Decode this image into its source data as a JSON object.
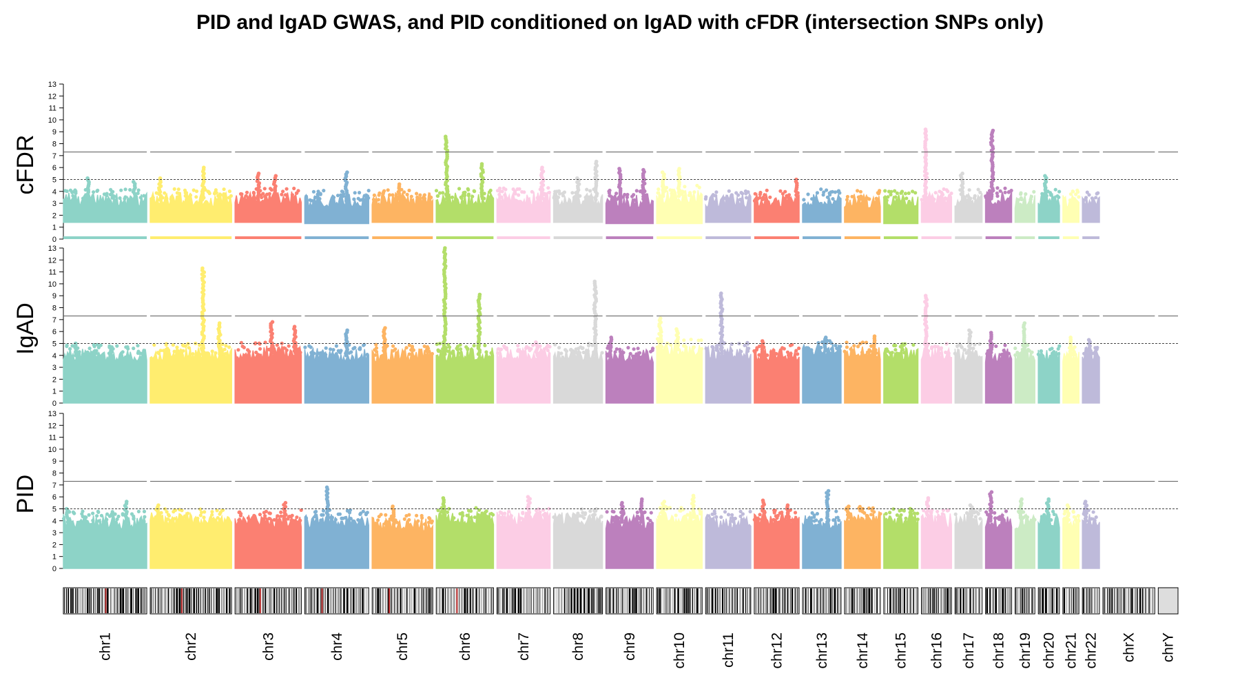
{
  "chart_data": {
    "type": "scatter",
    "subtype": "stacked manhattan plot",
    "title": "PID and IgAD GWAS, and PID conditioned on IgAD with cFDR (intersection SNPs only)",
    "ylim": [
      0,
      13
    ],
    "y_ticks": [
      0,
      1,
      2,
      3,
      4,
      5,
      6,
      7,
      8,
      9,
      10,
      11,
      12,
      13
    ],
    "genome_wide_threshold": 7.3,
    "suggestive_threshold": 5,
    "palette": [
      "#8dd3c7",
      "#ffed6f",
      "#fb8072",
      "#80b1d3",
      "#fdb462",
      "#b3de69",
      "#fccde5",
      "#d9d9d9",
      "#bc80bd",
      "#ffffb3",
      "#bebada",
      "#fb8072",
      "#80b1d3",
      "#fdb462",
      "#b3de69",
      "#fccde5",
      "#d9d9d9",
      "#bc80bd",
      "#ccebc5",
      "#8dd3c7",
      "#ffffb3",
      "#bebada"
    ],
    "chromosomes": [
      {
        "name": "chr1",
        "length": 249
      },
      {
        "name": "chr2",
        "length": 243
      },
      {
        "name": "chr3",
        "length": 198
      },
      {
        "name": "chr4",
        "length": 191
      },
      {
        "name": "chr5",
        "length": 181
      },
      {
        "name": "chr6",
        "length": 171
      },
      {
        "name": "chr7",
        "length": 159
      },
      {
        "name": "chr8",
        "length": 146
      },
      {
        "name": "chr9",
        "length": 141
      },
      {
        "name": "chr10",
        "length": 136
      },
      {
        "name": "chr11",
        "length": 135
      },
      {
        "name": "chr12",
        "length": 134
      },
      {
        "name": "chr13",
        "length": 115
      },
      {
        "name": "chr14",
        "length": 107
      },
      {
        "name": "chr15",
        "length": 102
      },
      {
        "name": "chr16",
        "length": 90
      },
      {
        "name": "chr17",
        "length": 81
      },
      {
        "name": "chr18",
        "length": 78
      },
      {
        "name": "chr19",
        "length": 59
      },
      {
        "name": "chr20",
        "length": 63
      },
      {
        "name": "chr21",
        "length": 48
      },
      {
        "name": "chr22",
        "length": 51
      },
      {
        "name": "chrX",
        "length": 155
      },
      {
        "name": "chrY",
        "length": 59
      }
    ],
    "panels": [
      {
        "label": "cFDR",
        "baseline": [
          1.4,
          1.4,
          1.4,
          1.3,
          1.4,
          1.4,
          1.4,
          1.4,
          1.3,
          1.3,
          1.4,
          1.4,
          1.4,
          1.4,
          1.3,
          1.4,
          1.4,
          1.4,
          1.4,
          1.4,
          1.4,
          1.4
        ],
        "typical": [
          3.3,
          3.3,
          3.4,
          3.2,
          3.3,
          3.4,
          3.4,
          3.3,
          3.2,
          3.6,
          3.2,
          3.2,
          3.3,
          3.2,
          3.2,
          3.3,
          3.3,
          3.4,
          3.2,
          3.3,
          3.2,
          3.2
        ],
        "peaks": [
          {
            "chr": 1,
            "pos": 0.3,
            "value": 5.1
          },
          {
            "chr": 1,
            "pos": 0.85,
            "value": 4.8
          },
          {
            "chr": 2,
            "pos": 0.12,
            "value": 5.1
          },
          {
            "chr": 2,
            "pos": 0.65,
            "value": 6.0
          },
          {
            "chr": 3,
            "pos": 0.35,
            "value": 5.5
          },
          {
            "chr": 3,
            "pos": 0.6,
            "value": 5.3
          },
          {
            "chr": 4,
            "pos": 0.65,
            "value": 5.6
          },
          {
            "chr": 5,
            "pos": 0.45,
            "value": 4.6
          },
          {
            "chr": 6,
            "pos": 0.18,
            "value": 8.6
          },
          {
            "chr": 6,
            "pos": 0.8,
            "value": 6.3
          },
          {
            "chr": 7,
            "pos": 0.85,
            "value": 6.0
          },
          {
            "chr": 8,
            "pos": 0.87,
            "value": 6.5
          },
          {
            "chr": 8,
            "pos": 0.5,
            "value": 5.1
          },
          {
            "chr": 9,
            "pos": 0.8,
            "value": 5.8
          },
          {
            "chr": 9,
            "pos": 0.3,
            "value": 5.9
          },
          {
            "chr": 10,
            "pos": 0.5,
            "value": 5.9
          },
          {
            "chr": 10,
            "pos": 0.15,
            "value": 5.6
          },
          {
            "chr": 12,
            "pos": 0.95,
            "value": 5.0
          },
          {
            "chr": 16,
            "pos": 0.15,
            "value": 9.2
          },
          {
            "chr": 17,
            "pos": 0.25,
            "value": 5.5
          },
          {
            "chr": 18,
            "pos": 0.25,
            "value": 9.1
          },
          {
            "chr": 20,
            "pos": 0.35,
            "value": 5.3
          }
        ]
      },
      {
        "label": "IgAD",
        "baseline": [
          0,
          0,
          0,
          0,
          0,
          0,
          0,
          0,
          0,
          0,
          0,
          0,
          0,
          0,
          0,
          0,
          0,
          0,
          0,
          0,
          0,
          0
        ],
        "typical": [
          4.0,
          4.1,
          4.2,
          4.0,
          4.0,
          4.1,
          4.0,
          4.1,
          3.9,
          4.5,
          4.2,
          4.0,
          4.4,
          4.2,
          4.1,
          4.1,
          4.1,
          4.0,
          4.0,
          4.0,
          4.0,
          4.1
        ],
        "peaks": [
          {
            "chr": 1,
            "pos": 0.15,
            "value": 5.0
          },
          {
            "chr": 2,
            "pos": 0.65,
            "value": 11.3
          },
          {
            "chr": 2,
            "pos": 0.85,
            "value": 6.7
          },
          {
            "chr": 3,
            "pos": 0.55,
            "value": 6.8
          },
          {
            "chr": 3,
            "pos": 0.9,
            "value": 6.4
          },
          {
            "chr": 4,
            "pos": 0.65,
            "value": 6.1
          },
          {
            "chr": 5,
            "pos": 0.2,
            "value": 6.3
          },
          {
            "chr": 6,
            "pos": 0.15,
            "value": 13.0
          },
          {
            "chr": 6,
            "pos": 0.75,
            "value": 9.1
          },
          {
            "chr": 7,
            "pos": 0.75,
            "value": 5.1
          },
          {
            "chr": 8,
            "pos": 0.85,
            "value": 10.2
          },
          {
            "chr": 9,
            "pos": 0.1,
            "value": 5.5
          },
          {
            "chr": 10,
            "pos": 0.08,
            "value": 7.1
          },
          {
            "chr": 10,
            "pos": 0.45,
            "value": 6.2
          },
          {
            "chr": 11,
            "pos": 0.35,
            "value": 9.2
          },
          {
            "chr": 12,
            "pos": 0.2,
            "value": 5.2
          },
          {
            "chr": 13,
            "pos": 0.6,
            "value": 5.5
          },
          {
            "chr": 14,
            "pos": 0.85,
            "value": 5.6
          },
          {
            "chr": 16,
            "pos": 0.15,
            "value": 9.0
          },
          {
            "chr": 17,
            "pos": 0.55,
            "value": 6.1
          },
          {
            "chr": 18,
            "pos": 0.2,
            "value": 5.9
          },
          {
            "chr": 19,
            "pos": 0.45,
            "value": 6.7
          },
          {
            "chr": 21,
            "pos": 0.5,
            "value": 5.5
          },
          {
            "chr": 22,
            "pos": 0.4,
            "value": 5.3
          }
        ]
      },
      {
        "label": "PID",
        "baseline": [
          0,
          0,
          0,
          0,
          0,
          0,
          0,
          0,
          0,
          0,
          0,
          0,
          0,
          0,
          0,
          0,
          0,
          0,
          0,
          0,
          0,
          0
        ],
        "typical": [
          3.9,
          4.1,
          4.0,
          4.0,
          3.7,
          4.2,
          4.2,
          4.1,
          3.9,
          4.3,
          3.9,
          4.0,
          3.9,
          4.3,
          4.1,
          4.0,
          4.1,
          4.0,
          3.9,
          4.0,
          3.9,
          4.0
        ],
        "peaks": [
          {
            "chr": 1,
            "pos": 0.05,
            "value": 5.0
          },
          {
            "chr": 1,
            "pos": 0.75,
            "value": 5.6
          },
          {
            "chr": 2,
            "pos": 0.1,
            "value": 5.3
          },
          {
            "chr": 3,
            "pos": 0.75,
            "value": 5.5
          },
          {
            "chr": 4,
            "pos": 0.35,
            "value": 6.8
          },
          {
            "chr": 5,
            "pos": 0.35,
            "value": 5.2
          },
          {
            "chr": 6,
            "pos": 0.13,
            "value": 5.9
          },
          {
            "chr": 7,
            "pos": 0.6,
            "value": 6.0
          },
          {
            "chr": 9,
            "pos": 0.35,
            "value": 5.5
          },
          {
            "chr": 9,
            "pos": 0.75,
            "value": 5.8
          },
          {
            "chr": 10,
            "pos": 0.15,
            "value": 5.6
          },
          {
            "chr": 10,
            "pos": 0.8,
            "value": 6.1
          },
          {
            "chr": 12,
            "pos": 0.2,
            "value": 5.7
          },
          {
            "chr": 12,
            "pos": 0.75,
            "value": 5.3
          },
          {
            "chr": 13,
            "pos": 0.65,
            "value": 6.5
          },
          {
            "chr": 14,
            "pos": 0.1,
            "value": 5.2
          },
          {
            "chr": 15,
            "pos": 0.8,
            "value": 5.0
          },
          {
            "chr": 16,
            "pos": 0.2,
            "value": 5.9
          },
          {
            "chr": 17,
            "pos": 0.6,
            "value": 5.3
          },
          {
            "chr": 18,
            "pos": 0.2,
            "value": 6.4
          },
          {
            "chr": 19,
            "pos": 0.3,
            "value": 5.8
          },
          {
            "chr": 20,
            "pos": 0.45,
            "value": 5.8
          },
          {
            "chr": 21,
            "pos": 0.3,
            "value": 5.3
          },
          {
            "chr": 22,
            "pos": 0.2,
            "value": 5.6
          }
        ]
      }
    ]
  }
}
